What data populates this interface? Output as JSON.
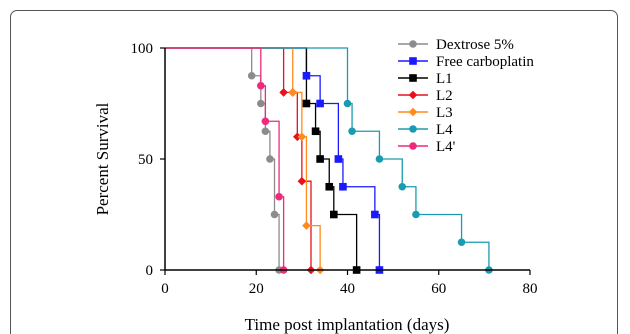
{
  "chart_data": {
    "type": "line",
    "step": true,
    "xlabel": "Time post implantation (days)",
    "ylabel": "Percent Survival",
    "xlim": [
      0,
      80
    ],
    "ylim": [
      0,
      100
    ],
    "xticks": [
      0,
      20,
      40,
      60,
      80
    ],
    "yticks": [
      0,
      50,
      100
    ],
    "grid": false,
    "legend_position": "top-right",
    "series": [
      {
        "name": "Dextrose 5%",
        "color": "#8c8c8c",
        "marker": "circle",
        "x": [
          19,
          21,
          22,
          23,
          24,
          25
        ],
        "y": [
          87.5,
          75,
          62.5,
          50,
          25,
          0
        ]
      },
      {
        "name": "Free carboplatin",
        "color": "#1a1aff",
        "marker": "square",
        "x": [
          31,
          34,
          38,
          39,
          46,
          47
        ],
        "y": [
          87.5,
          75,
          50,
          37.5,
          25,
          0
        ]
      },
      {
        "name": "L1",
        "color": "#000000",
        "marker": "square",
        "x": [
          31,
          33,
          34,
          36,
          37,
          42
        ],
        "y": [
          75,
          62.5,
          50,
          37.5,
          25,
          0
        ]
      },
      {
        "name": "L2",
        "color": "#e8121e",
        "marker": "diamond",
        "x": [
          26,
          28,
          29,
          30,
          32
        ],
        "y": [
          80,
          80,
          60,
          40,
          0
        ]
      },
      {
        "name": "L3",
        "color": "#ff8c1a",
        "marker": "diamond",
        "x": [
          28,
          30,
          31,
          34
        ],
        "y": [
          80,
          60,
          20,
          0
        ]
      },
      {
        "name": "L4",
        "color": "#1a9bb0",
        "marker": "circle",
        "x": [
          40,
          41,
          47,
          52,
          55,
          65,
          71
        ],
        "y": [
          75,
          62.5,
          50,
          37.5,
          25,
          12.5,
          0
        ]
      },
      {
        "name": "L4'",
        "color": "#ee2a7b",
        "marker": "circle",
        "x": [
          21,
          22,
          25,
          26
        ],
        "y": [
          83,
          67,
          33,
          0
        ]
      }
    ]
  }
}
